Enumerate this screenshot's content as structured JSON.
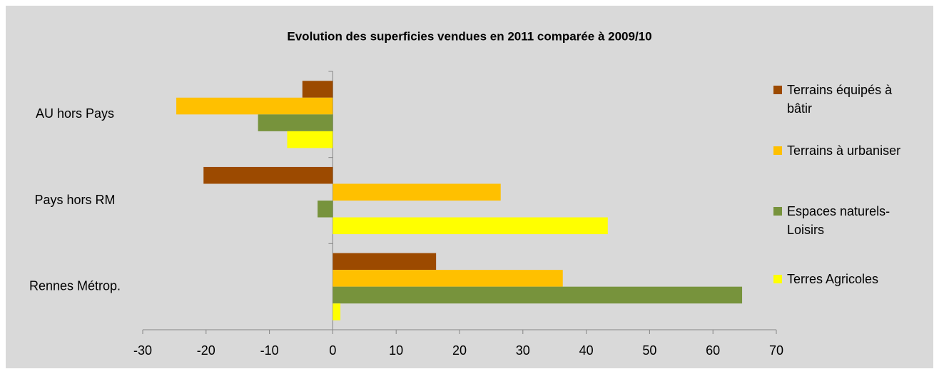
{
  "chart_data": {
    "type": "hbar",
    "title": "Evolution des superficies vendues en 2011 comparée à 2009/10",
    "categories": [
      "AU hors Pays",
      "Pays hors RM",
      "Rennes Métrop."
    ],
    "series": [
      {
        "name": "Terrains équipés à bâtir",
        "color": "#9c4a00",
        "values": [
          -4.8,
          -20.4,
          16.3
        ]
      },
      {
        "name": "Terrains à urbaniser",
        "color": "#ffc000",
        "values": [
          -24.7,
          26.5,
          36.3
        ]
      },
      {
        "name": "Espaces naturels-Loisirs",
        "color": "#77933c",
        "values": [
          -11.8,
          -2.4,
          64.6
        ]
      },
      {
        "name": "Terres Agricoles",
        "color": "#ffff00",
        "values": [
          -7.2,
          43.4,
          1.2
        ]
      }
    ],
    "xlim": [
      -30,
      70
    ],
    "xticks": [
      -30,
      -20,
      -10,
      0,
      10,
      20,
      30,
      40,
      50,
      60,
      70
    ],
    "grid": false,
    "legend": "right"
  }
}
